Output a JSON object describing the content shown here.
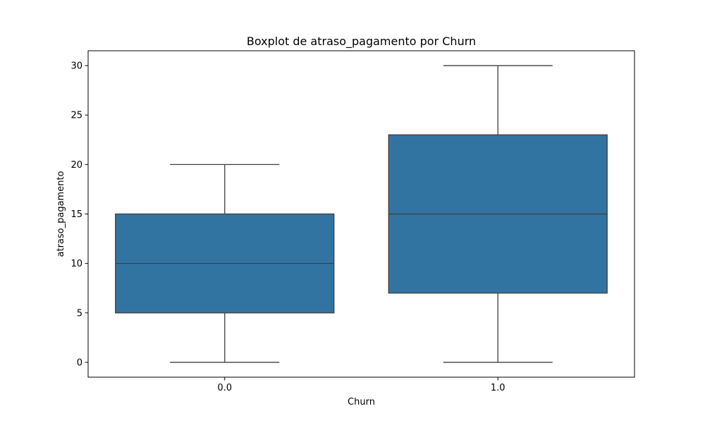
{
  "chart_data": {
    "type": "boxplot",
    "title": "Boxplot de atraso_pagamento por Churn",
    "xlabel": "Churn",
    "ylabel": "atraso_pagamento",
    "categories": [
      "0.0",
      "1.0"
    ],
    "boxes": [
      {
        "category": "0.0",
        "whisker_low": 0,
        "q1": 5,
        "median": 10,
        "q3": 15,
        "whisker_high": 20
      },
      {
        "category": "1.0",
        "whisker_low": 0,
        "q1": 7,
        "median": 15,
        "q3": 23,
        "whisker_high": 30
      }
    ],
    "ylim": [
      -1.5,
      31.5
    ],
    "yticks": [
      0,
      5,
      10,
      15,
      20,
      25,
      30
    ],
    "grid": false,
    "box_color": "#3274a1",
    "line_color": "#3f3f3f"
  }
}
